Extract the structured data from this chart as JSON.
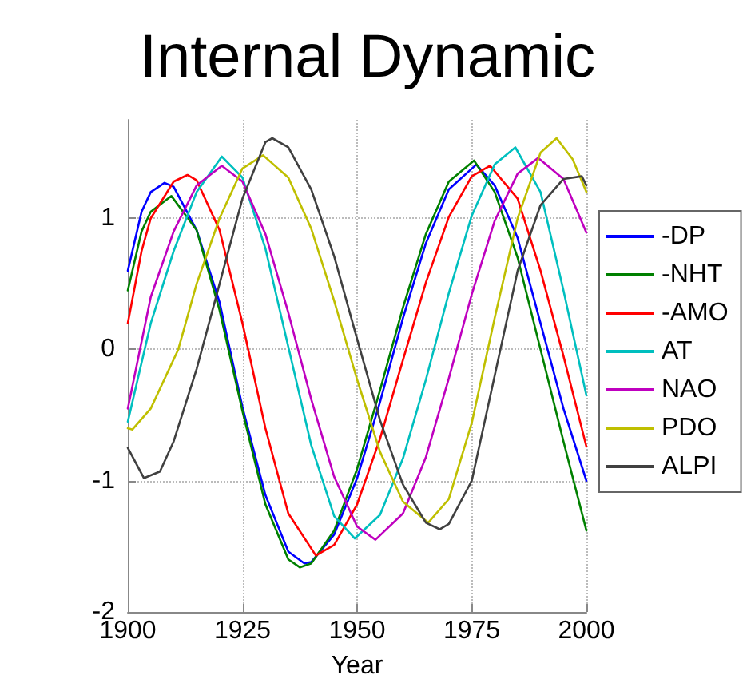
{
  "chart_data": {
    "type": "line",
    "title": "Internal Dynamic",
    "xlabel": "Year",
    "xlim": [
      1900,
      2000
    ],
    "xticks": [
      1900,
      1925,
      1950,
      1975,
      2000
    ],
    "ylim": [
      -2,
      1.75
    ],
    "yticks": [
      -2,
      -1,
      0,
      1
    ],
    "grid": true,
    "legend": "right",
    "marker": "none",
    "line_style": "solid",
    "series": [
      {
        "name": "-DP",
        "color": "#0000ff",
        "x": [
          1900,
          1903,
          1905,
          1908,
          1910,
          1915,
          1920,
          1925,
          1930,
          1935,
          1938.5,
          1940,
          1945,
          1950,
          1955,
          1960,
          1965,
          1970,
          1976,
          1980,
          1985,
          1990,
          1995,
          2000
        ],
        "values": [
          0.6,
          1.05,
          1.2,
          1.27,
          1.24,
          0.91,
          0.36,
          -0.44,
          -1.11,
          -1.54,
          -1.63,
          -1.62,
          -1.41,
          -0.98,
          -0.4,
          0.24,
          0.81,
          1.22,
          1.41,
          1.25,
          0.85,
          0.2,
          -0.45,
          -1.0
        ]
      },
      {
        "name": "-NHT",
        "color": "#008000",
        "x": [
          1900,
          1903,
          1905,
          1909.5,
          1915,
          1920,
          1925,
          1930,
          1935,
          1937.5,
          1940,
          1945,
          1950,
          1955,
          1960,
          1965,
          1970,
          1975.5,
          1980,
          1985,
          1990,
          1995,
          2000
        ],
        "values": [
          0.45,
          0.9,
          1.05,
          1.17,
          0.91,
          0.3,
          -0.47,
          -1.18,
          -1.6,
          -1.66,
          -1.63,
          -1.38,
          -0.91,
          -0.31,
          0.32,
          0.88,
          1.28,
          1.44,
          1.2,
          0.7,
          0.0,
          -0.7,
          -1.38
        ]
      },
      {
        "name": "-AMO",
        "color": "#ff0000",
        "x": [
          1900,
          1903,
          1905,
          1910,
          1913,
          1915,
          1920,
          1925,
          1930,
          1935,
          1941,
          1945,
          1950,
          1955,
          1960,
          1965,
          1970,
          1975,
          1979,
          1985,
          1990,
          1995,
          2000
        ],
        "values": [
          0.2,
          0.75,
          1.0,
          1.28,
          1.33,
          1.29,
          0.91,
          0.2,
          -0.6,
          -1.25,
          -1.57,
          -1.49,
          -1.18,
          -0.68,
          -0.08,
          0.51,
          1.01,
          1.32,
          1.4,
          1.15,
          0.6,
          -0.05,
          -0.74
        ]
      },
      {
        "name": "AT",
        "color": "#00bfbf",
        "x": [
          1900,
          1905,
          1910,
          1915,
          1920.5,
          1925,
          1930,
          1935,
          1940,
          1945,
          1949.5,
          1955,
          1960,
          1965,
          1970,
          1975,
          1980,
          1984.5,
          1990,
          1995,
          2000
        ],
        "values": [
          -0.55,
          0.2,
          0.75,
          1.2,
          1.47,
          1.31,
          0.77,
          0.02,
          -0.73,
          -1.27,
          -1.44,
          -1.26,
          -0.83,
          -0.23,
          0.43,
          1.02,
          1.41,
          1.54,
          1.2,
          0.45,
          -0.35
        ]
      },
      {
        "name": "NAO",
        "color": "#bf00bf",
        "x": [
          1900,
          1905,
          1910,
          1915,
          1920.5,
          1925,
          1930,
          1935,
          1940,
          1945,
          1950,
          1954,
          1960,
          1965,
          1970,
          1975,
          1980,
          1985,
          1989.5,
          1995,
          2000
        ],
        "values": [
          -0.45,
          0.4,
          0.9,
          1.25,
          1.4,
          1.28,
          0.88,
          0.28,
          -0.38,
          -0.97,
          -1.35,
          -1.45,
          -1.25,
          -0.82,
          -0.22,
          0.42,
          0.98,
          1.34,
          1.46,
          1.3,
          0.89
        ]
      },
      {
        "name": "PDO",
        "color": "#bfbf00",
        "x": [
          1900,
          1901,
          1905,
          1911,
          1915,
          1920,
          1925,
          1929.5,
          1935,
          1940,
          1945,
          1950,
          1955,
          1960,
          1965.5,
          1970,
          1975,
          1980,
          1985,
          1990,
          1993.5,
          1997,
          2000
        ],
        "values": [
          -0.6,
          -0.61,
          -0.45,
          0.0,
          0.5,
          1.0,
          1.38,
          1.48,
          1.31,
          0.92,
          0.37,
          -0.23,
          -0.78,
          -1.16,
          -1.32,
          -1.14,
          -0.56,
          0.24,
          1.0,
          1.5,
          1.61,
          1.45,
          1.2
        ]
      },
      {
        "name": "ALPI",
        "color": "#404040",
        "x": [
          1900,
          1903.5,
          1907,
          1910,
          1915,
          1920,
          1925,
          1930,
          1931.5,
          1935,
          1940,
          1945,
          1950,
          1955,
          1960,
          1965,
          1968,
          1970,
          1975,
          1980,
          1985,
          1990,
          1995,
          1999,
          2000
        ],
        "values": [
          -0.75,
          -0.98,
          -0.93,
          -0.7,
          -0.15,
          0.5,
          1.15,
          1.58,
          1.61,
          1.54,
          1.22,
          0.71,
          0.08,
          -0.54,
          -1.03,
          -1.32,
          -1.37,
          -1.33,
          -1.0,
          -0.2,
          0.6,
          1.1,
          1.3,
          1.32,
          1.25
        ]
      }
    ]
  }
}
